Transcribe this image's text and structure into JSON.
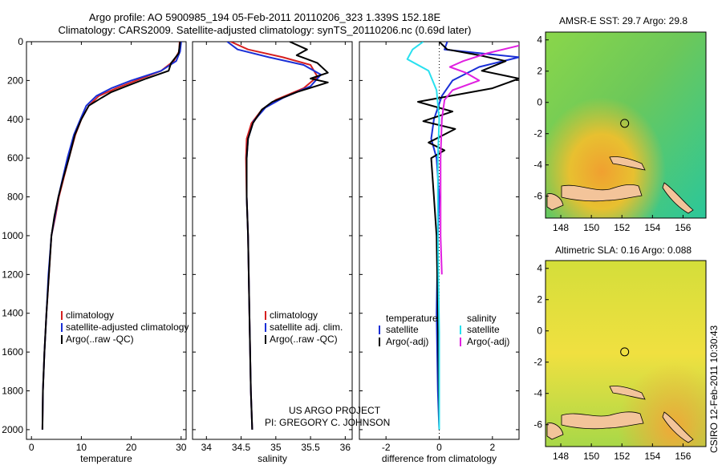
{
  "header": {
    "line1": "Argo profile: AO 5900985_194 05-Feb-2011 20110206_323 1.339S 152.18E",
    "line2": "Climatology: CARS2009. Satellite-adjusted climatology: synTS_20110206.nc (0.69d later)"
  },
  "credit": {
    "project": "US ARGO PROJECT",
    "pi": "PI: GREGORY C. JOHNSON",
    "stamp": "CSIRO 12-Feb-2011 10:30:43"
  },
  "colors": {
    "climatology": "#d62020",
    "satellite": "#1a2fd6",
    "argo": "#000000",
    "cyan": "#28e0ef",
    "magenta": "#e020e0"
  },
  "chart_data": [
    {
      "type": "line",
      "xlabel": "temperature",
      "xlim": [
        -1,
        31
      ],
      "ylim": [
        2050,
        0
      ],
      "xticks": [
        0,
        10,
        20,
        30
      ],
      "yticks": [
        0,
        200,
        400,
        600,
        800,
        1000,
        1200,
        1400,
        1600,
        1800,
        2000
      ],
      "legend": {
        "entries": [
          "climatology",
          "satellite-adjusted climatology",
          "Argo(..raw -QC)"
        ],
        "placement": "bottom-right"
      },
      "series": [
        {
          "name": "climatology",
          "color": "red",
          "x": [
            29.7,
            29.6,
            28.5,
            26.0,
            21.0,
            17.0,
            13.5,
            11.5,
            10.0,
            8.8,
            7.5,
            6.5,
            5.5,
            4.8,
            4.0,
            3.5,
            3.0,
            2.6,
            2.3,
            2.2
          ],
          "y": [
            0,
            50,
            100,
            150,
            200,
            240,
            280,
            330,
            400,
            480,
            600,
            700,
            800,
            900,
            1000,
            1200,
            1400,
            1600,
            1800,
            2000
          ]
        },
        {
          "name": "satellite-adjusted climatology",
          "color": "blue",
          "x": [
            30.0,
            29.8,
            29.0,
            26.0,
            20.0,
            16.0,
            13.0,
            11.0,
            9.8,
            8.5,
            7.2,
            6.3,
            5.4,
            4.7,
            4.0,
            3.4,
            3.0,
            2.6,
            2.3,
            2.2
          ],
          "y": [
            0,
            50,
            100,
            150,
            200,
            240,
            280,
            330,
            400,
            480,
            600,
            700,
            800,
            900,
            1000,
            1200,
            1400,
            1600,
            1800,
            2000
          ]
        },
        {
          "name": "Argo(..raw -QC)",
          "color": "black",
          "x": [
            29.8,
            29.5,
            28.0,
            27.5,
            23.0,
            19.0,
            16.0,
            14.0,
            11.5,
            10.0,
            8.7,
            7.5,
            6.4,
            5.4,
            4.6,
            4.0,
            3.5,
            3.0,
            2.6,
            2.3,
            2.2
          ],
          "y": [
            0,
            60,
            110,
            150,
            190,
            230,
            260,
            290,
            330,
            400,
            480,
            600,
            700,
            800,
            900,
            1000,
            1200,
            1400,
            1600,
            1800,
            2000
          ]
        }
      ]
    },
    {
      "type": "line",
      "xlabel": "salinity",
      "xlim": [
        33.8,
        36.1
      ],
      "ylim": [
        2050,
        0
      ],
      "xticks": [
        34,
        34.5,
        35,
        35.5,
        36
      ],
      "legend": {
        "entries": [
          "climatology",
          "satellite adj. clim.",
          "Argo(..raw -QC)"
        ],
        "placement": "bottom-right"
      },
      "series": [
        {
          "name": "climatology",
          "color": "red",
          "x": [
            34.35,
            34.6,
            35.1,
            35.5,
            35.6,
            35.4,
            35.0,
            34.8,
            34.65,
            34.58,
            34.57,
            34.58,
            34.6,
            34.62,
            34.64,
            34.66
          ],
          "y": [
            0,
            40,
            80,
            120,
            180,
            240,
            300,
            350,
            420,
            500,
            600,
            800,
            1000,
            1400,
            1800,
            2000
          ]
        },
        {
          "name": "satellite adj. clim.",
          "color": "blue",
          "x": [
            34.3,
            34.45,
            34.9,
            35.4,
            35.65,
            35.5,
            35.1,
            34.85,
            34.68,
            34.6,
            34.58,
            34.58,
            34.6,
            34.62,
            34.64,
            34.66
          ],
          "y": [
            0,
            40,
            80,
            120,
            170,
            230,
            290,
            340,
            410,
            500,
            600,
            800,
            1000,
            1400,
            1800,
            2000
          ]
        },
        {
          "name": "Argo(..raw -QC)",
          "color": "black",
          "x": [
            35.2,
            35.45,
            35.3,
            35.6,
            35.75,
            35.5,
            35.75,
            35.3,
            34.95,
            34.8,
            34.67,
            34.6,
            34.58,
            34.58,
            34.6,
            34.62,
            34.64,
            34.66
          ],
          "y": [
            0,
            40,
            70,
            110,
            160,
            190,
            210,
            260,
            310,
            350,
            420,
            500,
            600,
            800,
            1000,
            1400,
            1800,
            2000
          ]
        }
      ]
    },
    {
      "type": "line",
      "xlabel": "difference from climatology",
      "xlim": [
        -3,
        3
      ],
      "ylim": [
        2050,
        0
      ],
      "xticks": [
        -2,
        0,
        2
      ],
      "legend": {
        "entries": [
          "temperature",
          "satellite",
          "Argo(-adj)",
          "salinity",
          "satellite",
          "Argo(-adj)"
        ],
        "placement": "bottom"
      },
      "series": [
        {
          "name": "temperature satellite",
          "color": "blue",
          "x": [
            0.3,
            0.2,
            3.0,
            1.5,
            0.5,
            0.1,
            -0.2,
            -0.3,
            -0.1,
            0,
            -0.05,
            -0.1,
            -0.05,
            0
          ],
          "y": [
            0,
            40,
            80,
            130,
            200,
            280,
            400,
            500,
            600,
            800,
            1000,
            1400,
            1800,
            2000
          ]
        },
        {
          "name": "temperature Argo(-adj)",
          "color": "black",
          "x": [
            0.0,
            0.3,
            1.5,
            2.5,
            1.6,
            3.0,
            2.0,
            -0.8,
            0.5,
            -0.6,
            0.6,
            -0.4,
            0.2,
            -0.3,
            -0.2,
            -0.1,
            -0.05,
            0
          ],
          "y": [
            0,
            40,
            70,
            100,
            150,
            190,
            240,
            310,
            360,
            410,
            450,
            520,
            560,
            600,
            800,
            1000,
            1400,
            2000
          ]
        },
        {
          "name": "salinity satellite",
          "color": "cyan",
          "x": [
            -0.6,
            -1.0,
            -1.2,
            -0.4,
            -0.1,
            0.0,
            -0.05,
            -0.05,
            0.0,
            0.0
          ],
          "y": [
            0,
            40,
            90,
            150,
            250,
            400,
            600,
            1000,
            1500,
            2000
          ]
        },
        {
          "name": "salinity Argo(-adj)",
          "color": "magenta",
          "x": [
            3.0,
            1.8,
            0.9,
            0.4,
            1.0,
            1.5,
            0.5,
            0.2,
            0.1,
            0.05,
            0.05,
            0.1
          ],
          "y": [
            20,
            60,
            100,
            130,
            160,
            200,
            250,
            300,
            400,
            600,
            1000,
            1200
          ]
        }
      ]
    },
    {
      "type": "heatmap",
      "title": "AMSR-E SST: 29.7 Argo: 29.8",
      "xlim": [
        147,
        157.5
      ],
      "ylim": [
        -7.4,
        4.5
      ],
      "xticks": [
        148,
        150,
        152,
        154,
        156
      ],
      "yticks": [
        -6,
        -4,
        -2,
        0,
        2,
        4
      ],
      "marker": {
        "x": 152.18,
        "y": -1.339
      }
    },
    {
      "type": "heatmap",
      "title": "Altimetric SLA: 0.16 Argo: 0.088",
      "xlim": [
        147,
        157.5
      ],
      "ylim": [
        -7.4,
        4.5
      ],
      "xticks": [
        148,
        150,
        152,
        154,
        156
      ],
      "yticks": [
        -6,
        -4,
        -2,
        0,
        2,
        4
      ],
      "marker": {
        "x": 152.18,
        "y": -1.339
      }
    }
  ]
}
